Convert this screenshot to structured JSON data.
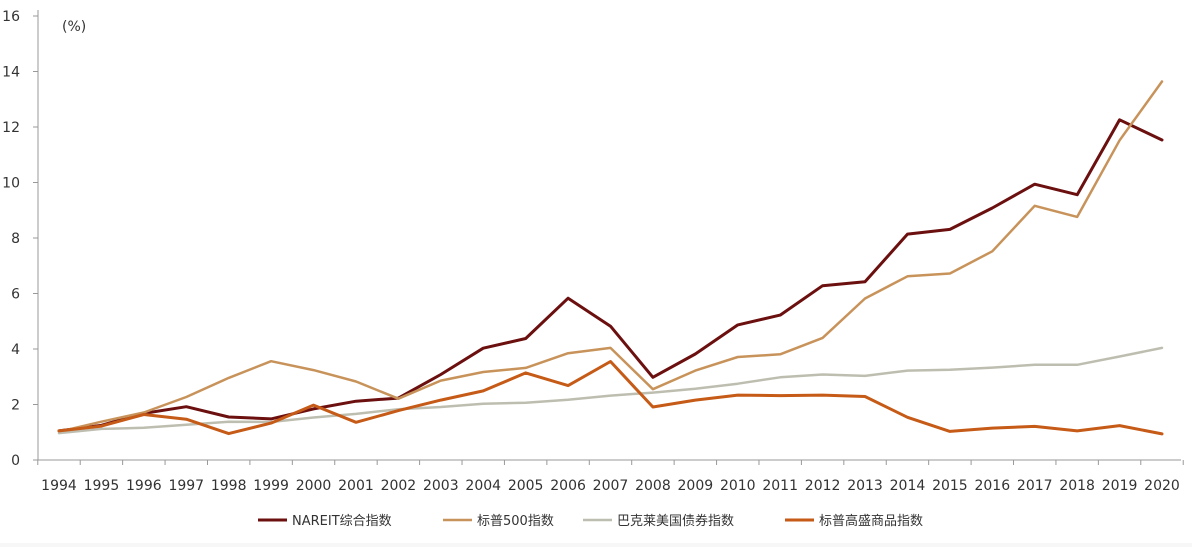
{
  "chart_data": {
    "type": "line",
    "unit_label": "(%)",
    "x": [
      "1994",
      "1995",
      "1996",
      "1997",
      "1998",
      "1999",
      "2000",
      "2001",
      "2002",
      "2003",
      "2004",
      "2005",
      "2006",
      "2007",
      "2008",
      "2009",
      "2010",
      "2011",
      "2012",
      "2013",
      "2014",
      "2015",
      "2016",
      "2017",
      "2018",
      "2019",
      "2020"
    ],
    "ylim": [
      0,
      16
    ],
    "yticks": [
      0,
      2,
      4,
      6,
      8,
      10,
      12,
      14,
      16
    ],
    "grid": false,
    "legend_position": "bottom",
    "series": [
      {
        "name": "NAREIT综合指数",
        "color": "#6b0f0f",
        "values": [
          1.05,
          1.25,
          1.68,
          1.92,
          1.55,
          1.48,
          1.84,
          2.12,
          2.23,
          3.08,
          4.03,
          4.38,
          5.83,
          4.82,
          2.98,
          3.82,
          4.87,
          5.22,
          6.28,
          6.42,
          8.14,
          8.31,
          9.08,
          9.94,
          9.56,
          12.26,
          11.53
        ]
      },
      {
        "name": "标普500指数",
        "color": "#c8935a",
        "values": [
          1.02,
          1.38,
          1.71,
          2.27,
          2.96,
          3.56,
          3.24,
          2.83,
          2.21,
          2.86,
          3.17,
          3.32,
          3.85,
          4.04,
          2.55,
          3.22,
          3.71,
          3.81,
          4.4,
          5.82,
          6.62,
          6.72,
          7.52,
          9.16,
          8.76,
          11.52,
          13.64
        ]
      },
      {
        "name": "巴克莱美国债券指数",
        "color": "#bebeb0",
        "values": [
          0.97,
          1.12,
          1.16,
          1.27,
          1.38,
          1.37,
          1.53,
          1.66,
          1.83,
          1.91,
          2.03,
          2.06,
          2.17,
          2.32,
          2.43,
          2.57,
          2.75,
          2.98,
          3.08,
          3.03,
          3.22,
          3.25,
          3.33,
          3.43,
          3.43,
          3.73,
          4.04
        ]
      },
      {
        "name": "标普高盛商品指数",
        "color": "#c65a17",
        "values": [
          1.05,
          1.22,
          1.64,
          1.47,
          0.95,
          1.33,
          1.98,
          1.36,
          1.78,
          2.16,
          2.49,
          3.14,
          2.68,
          3.55,
          1.91,
          2.16,
          2.34,
          2.32,
          2.34,
          2.29,
          1.54,
          1.03,
          1.15,
          1.21,
          1.05,
          1.24,
          0.94
        ]
      }
    ]
  }
}
